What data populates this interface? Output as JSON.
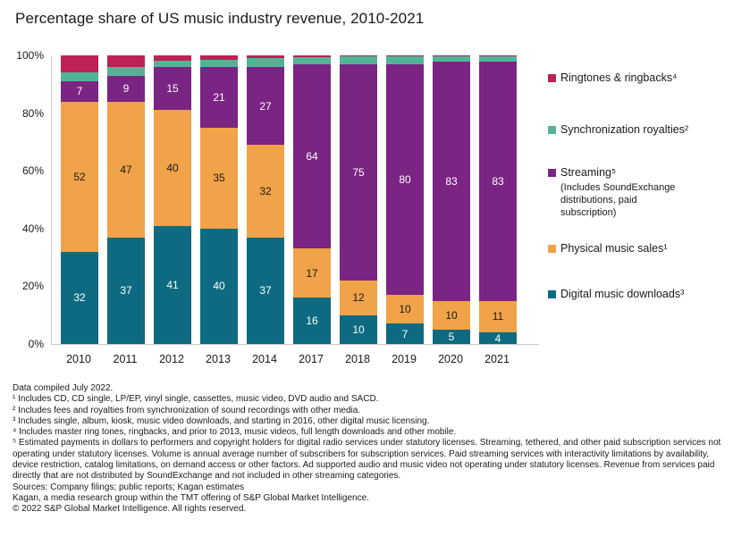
{
  "title": "Percentage share of US music industry revenue, 2010-2021",
  "chart_data": {
    "type": "bar",
    "stacked": true,
    "title": "Percentage share of US music industry revenue, 2010-2021",
    "categories": [
      "2010",
      "2011",
      "2012",
      "2013",
      "2014",
      "2017",
      "2018",
      "2019",
      "2020",
      "2021"
    ],
    "y_ticks": [
      "100%",
      "80%",
      "60%",
      "40%",
      "20%",
      "0%"
    ],
    "ylim": [
      0,
      100
    ],
    "ylabel": "",
    "xlabel": "",
    "grid": false,
    "legend_position": "right",
    "series": [
      {
        "key": "digital-music-downloads",
        "name": "Digital music downloads³",
        "color": "#0E6A80",
        "label_color": "#ffffff",
        "show_labels": true,
        "values": [
          32,
          37,
          41,
          40,
          37,
          16,
          10,
          7,
          5,
          4
        ]
      },
      {
        "key": "physical-music-sales",
        "name": "Physical music sales¹",
        "color": "#F0A348",
        "label_color": "#1a1a1a",
        "show_labels": true,
        "values": [
          52,
          47,
          40,
          35,
          32,
          17,
          12,
          10,
          10,
          11
        ]
      },
      {
        "key": "streaming",
        "name": "Streaming⁵",
        "sublabel": "(Includes SoundExchange distributions, paid subscription)",
        "color": "#7A2483",
        "label_color": "#ffffff",
        "show_labels": true,
        "values": [
          7,
          9,
          15,
          21,
          27,
          64,
          75,
          80,
          83,
          83
        ]
      },
      {
        "key": "synchronization-royalties",
        "name": "Synchronization royalties²",
        "color": "#52B496",
        "show_labels": false,
        "values": [
          3,
          3,
          2,
          2.5,
          3,
          2.5,
          2.6,
          2.7,
          1.8,
          1.8
        ]
      },
      {
        "key": "ringtones-ringbacks",
        "name": "Ringtones & ringbacks⁴",
        "color": "#BE2154",
        "show_labels": false,
        "values": [
          6,
          4,
          2,
          1.5,
          1,
          0.5,
          0.4,
          0.3,
          0.2,
          0.2
        ]
      }
    ],
    "legend_order": [
      4,
      3,
      2,
      1,
      0
    ]
  },
  "footnotes": [
    "Data compiled July 2022.",
    "¹ Includes CD, CD single, LP/EP, vinyl single, cassettes, music video, DVD audio and SACD.",
    "² Includes fees and royalties from synchronization of sound recordings with other media.",
    "³ Includes single, album, kiosk, music video downloads, and starting in 2016, other digital music licensing.",
    "⁴ Includes master ring tones, ringbacks, and prior to 2013, music videos, full length downloads and other mobile.",
    "⁵ Estimated payments in dollars to performers and copyright holders for digital radio services under statutory licenses. Streaming, tethered, and other paid subscription services not operating under statutory licenses. Volume is annual average number of subscribers for subscription services. Paid streaming services with interactivity limitations by availability, device restriction, catalog limitations, on demand access or other factors. Ad supported audio and music video not operating under statutory licenses. Revenue from services paid directly that are not distributed by SoundExchange and not included in other streaming categories.",
    "Sources: Company filings; public reports; Kagan estimates",
    "Kagan, a media research group within the TMT offering of S&P Global Market Intelligence.",
    "© 2022 S&P Global Market Intelligence. All rights reserved."
  ]
}
